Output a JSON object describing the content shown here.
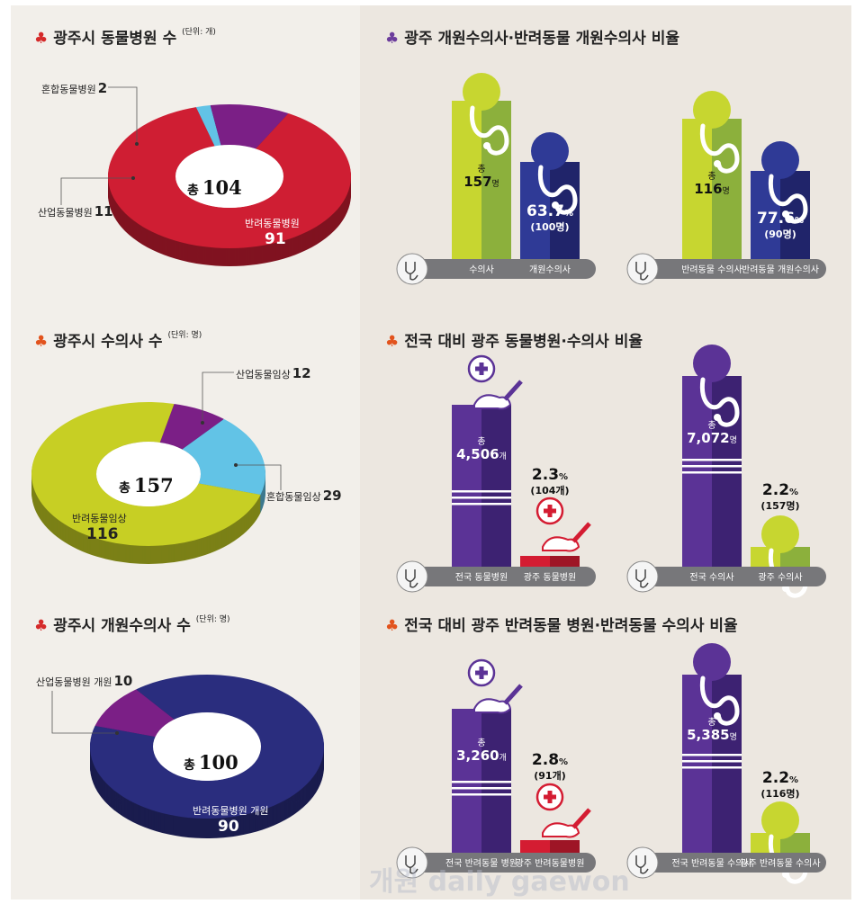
{
  "left": {
    "hospitals": {
      "title": "광주시 동물병원 수",
      "unit": "(단위: 개)",
      "total_prefix": "총",
      "total": "104",
      "segments": [
        {
          "label": "혼합동물병원",
          "value": 2,
          "color": "#62c3e6"
        },
        {
          "label": "산업동물병원",
          "value": 11,
          "color": "#7b1f86"
        },
        {
          "label": "반려동물병원",
          "value": 91,
          "color": "#cf1e33"
        }
      ]
    },
    "vets": {
      "title": "광주시 수의사 수",
      "unit": "(단위: 명)",
      "total_prefix": "총",
      "total": "157",
      "segments": [
        {
          "label": "산업동물임상",
          "value": 12,
          "color": "#7b1f86"
        },
        {
          "label": "혼합동물임상",
          "value": 29,
          "color": "#62c3e6"
        },
        {
          "label": "반려동물임상",
          "value": 116,
          "color": "#c7cf24"
        }
      ]
    },
    "open_vets": {
      "title": "광주시 개원수의사 수",
      "unit": "(단위: 명)",
      "total_prefix": "총",
      "total": "100",
      "segments": [
        {
          "label": "산업동물병원 개원",
          "value": 10,
          "color": "#7b1f86"
        },
        {
          "label": "반려동물병원 개원",
          "value": 90,
          "color": "#2a2d7e"
        }
      ]
    }
  },
  "right": {
    "section1": {
      "title": "광주 개원수의사·반려동물 개원수의사 비율",
      "panel_a": {
        "bar1_prefix": "총",
        "bar1_value": "157",
        "bar1_unit": "명",
        "bar2_pct": "63.7",
        "bar2_sub": "(100명)",
        "label1": "수의사",
        "label2": "개원수의사"
      },
      "panel_b": {
        "bar1_prefix": "총",
        "bar1_value": "116",
        "bar1_unit": "명",
        "bar2_pct": "77.6",
        "bar2_sub": "(90명)",
        "label1": "반려동물 수의사",
        "label2": "반려동물 개원수의사"
      }
    },
    "section2": {
      "title": "전국 대비 광주 동물병원·수의사 비율",
      "panel_a": {
        "bar1_prefix": "총",
        "bar1_value": "4,506",
        "bar1_unit": "개",
        "bar2_pct": "2.3",
        "bar2_sub": "(104개)",
        "label1": "전국 동물병원",
        "label2": "광주 동물병원"
      },
      "panel_b": {
        "bar1_prefix": "총",
        "bar1_value": "7,072",
        "bar1_unit": "명",
        "bar2_pct": "2.2",
        "bar2_sub": "(157명)",
        "label1": "전국 수의사",
        "label2": "광주 수의사"
      }
    },
    "section3": {
      "title": "전국 대비 광주 반려동물 병원·반려동물 수의사 비율",
      "panel_a": {
        "bar1_prefix": "총",
        "bar1_value": "3,260",
        "bar1_unit": "개",
        "bar2_pct": "2.8",
        "bar2_sub": "(91개)",
        "label1": "전국 반려동물 병원",
        "label2": "광주 반려동물병원"
      },
      "panel_b": {
        "bar1_prefix": "총",
        "bar1_value": "5,385",
        "bar1_unit": "명",
        "bar2_pct": "2.2",
        "bar2_sub": "(116명)",
        "label1": "전국 반려동물 수의사",
        "label2": "광주 반려동물 수의사"
      }
    }
  },
  "watermark": "개원 daily gaewon",
  "chart_data": [
    {
      "type": "pie",
      "title": "광주시 동물병원 수",
      "labels": [
        "혼합동물병원",
        "산업동물병원",
        "반려동물병원"
      ],
      "values": [
        2,
        11,
        91
      ],
      "total": 104
    },
    {
      "type": "pie",
      "title": "광주시 수의사 수",
      "labels": [
        "산업동물임상",
        "혼합동물임상",
        "반려동물임상"
      ],
      "values": [
        12,
        29,
        116
      ],
      "total": 157
    },
    {
      "type": "pie",
      "title": "광주시 개원수의사 수",
      "labels": [
        "산업동물병원 개원",
        "반려동물병원 개원"
      ],
      "values": [
        10,
        90
      ],
      "total": 100
    },
    {
      "type": "bar",
      "title": "광주 개원수의사·반려동물 개원수의사 비율",
      "categories": [
        "수의사",
        "개원수의사"
      ],
      "values": [
        157,
        100
      ],
      "ratio_percent": 63.7
    },
    {
      "type": "bar",
      "title": "광주 개원수의사·반려동물 개원수의사 비율",
      "categories": [
        "반려동물 수의사",
        "반려동물 개원수의사"
      ],
      "values": [
        116,
        90
      ],
      "ratio_percent": 77.6
    },
    {
      "type": "bar",
      "title": "전국 대비 광주 동물병원·수의사 비율",
      "categories": [
        "전국 동물병원",
        "광주 동물병원"
      ],
      "values": [
        4506,
        104
      ],
      "ratio_percent": 2.3
    },
    {
      "type": "bar",
      "title": "전국 대비 광주 동물병원·수의사 비율",
      "categories": [
        "전국 수의사",
        "광주 수의사"
      ],
      "values": [
        7072,
        157
      ],
      "ratio_percent": 2.2
    },
    {
      "type": "bar",
      "title": "전국 대비 광주 반려동물 병원·반려동물 수의사 비율",
      "categories": [
        "전국 반려동물 병원",
        "광주 반려동물병원"
      ],
      "values": [
        3260,
        91
      ],
      "ratio_percent": 2.8
    },
    {
      "type": "bar",
      "title": "전국 대비 광주 반려동물 병원·반려동물 수의사 비율",
      "categories": [
        "전국 반려동물 수의사",
        "광주 반려동물 수의사"
      ],
      "values": [
        5385,
        116
      ],
      "ratio_percent": 2.2
    }
  ]
}
